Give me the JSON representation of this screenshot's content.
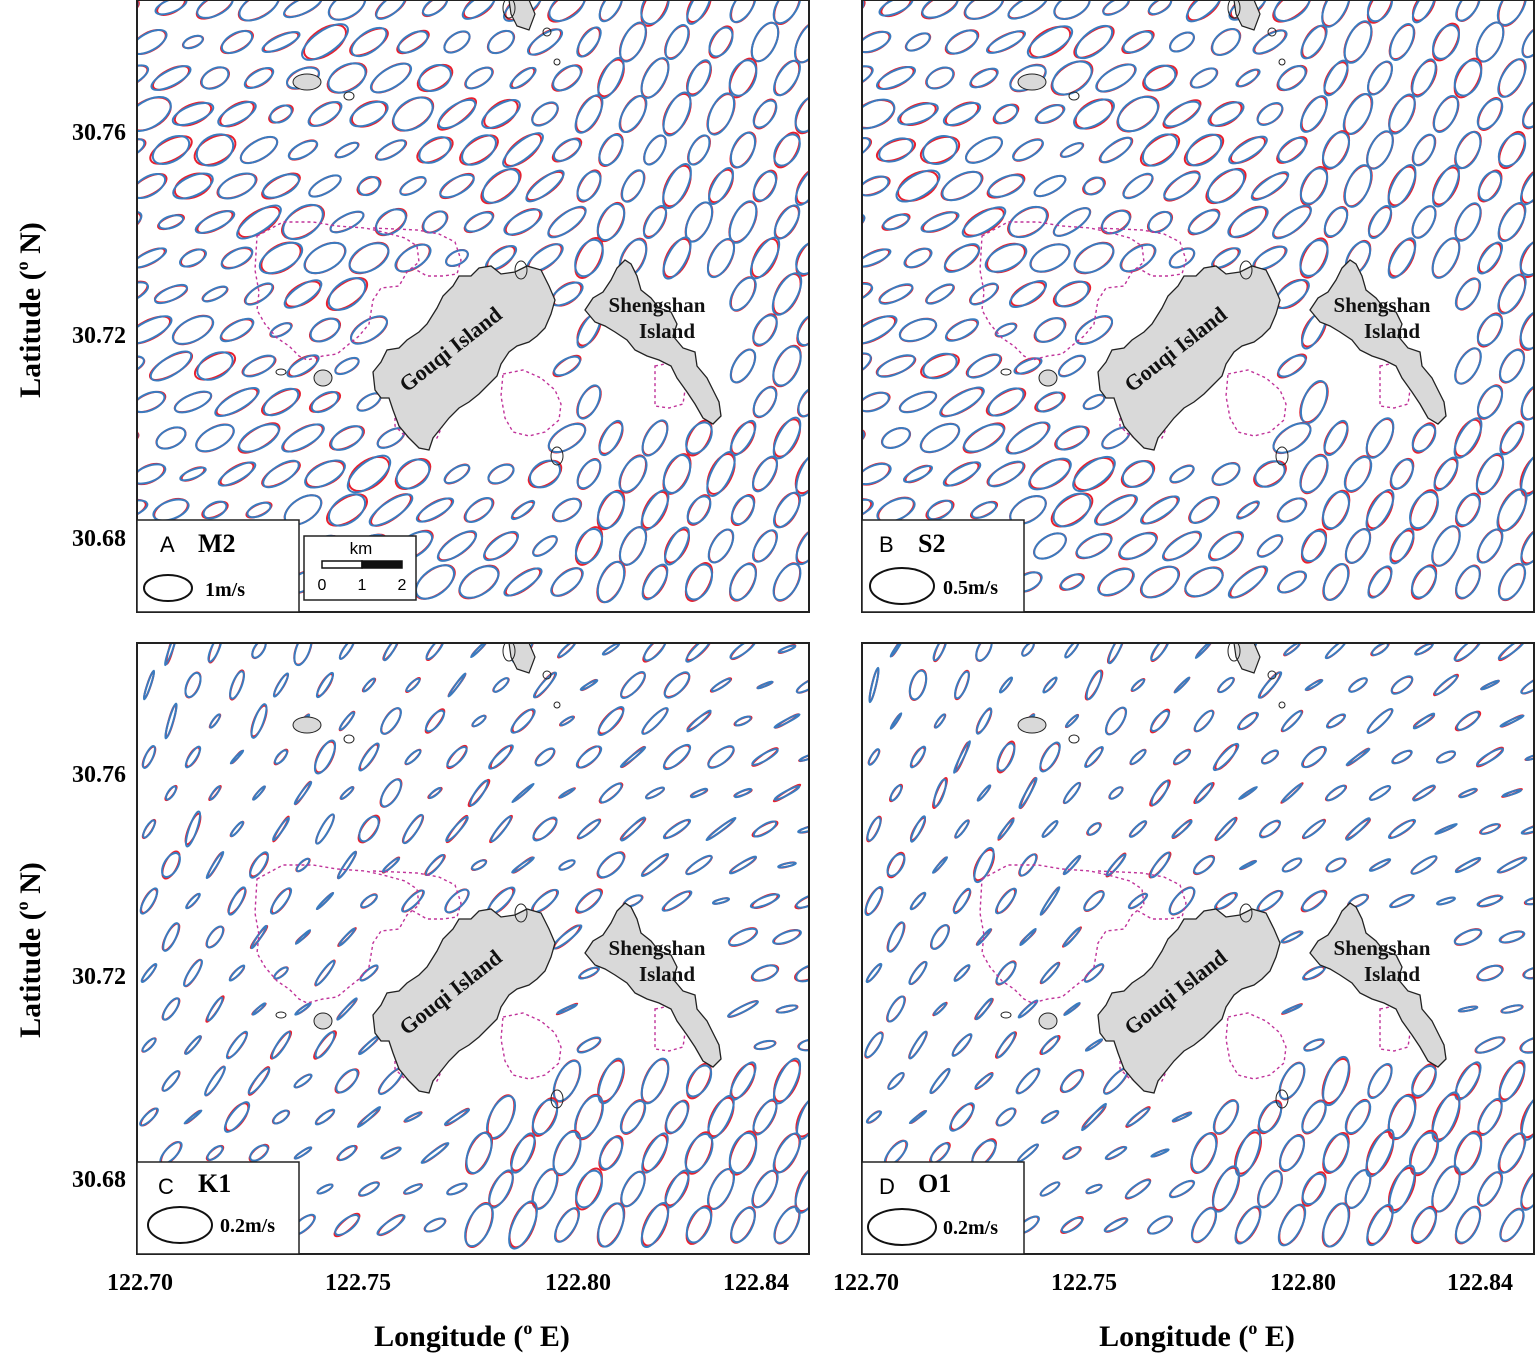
{
  "figure": {
    "x_axis_label": "Longitude (° E)",
    "x_axis_label_parts": {
      "pre": "Longitude (",
      "sup": "o",
      "post": " E)"
    },
    "y_axis_label_parts": {
      "pre": "Latitude (",
      "sup": "o",
      "post": " N)"
    },
    "x_ticks": [
      "122.70",
      "122.75",
      "122.80",
      "122.84"
    ],
    "y_ticks": [
      "30.76",
      "30.72",
      "30.68"
    ],
    "colors": {
      "observed": "#e8202e",
      "modeled": "#3a7bbf",
      "island_fill": "#d9d9d9",
      "outline": "#222222",
      "boundary": "#c0339a"
    }
  },
  "islands": {
    "gouqi": "Gouqi Island",
    "shengshan_line1": "Shengshan",
    "shengshan_line2": "Island"
  },
  "panels": [
    {
      "letter": "A",
      "constituent": "M2",
      "scale_label": "1m/s"
    },
    {
      "letter": "B",
      "constituent": "S2",
      "scale_label": "0.5m/s"
    },
    {
      "letter": "C",
      "constituent": "K1",
      "scale_label": "0.2m/s"
    },
    {
      "letter": "D",
      "constituent": "O1",
      "scale_label": "0.2m/s"
    }
  ],
  "scalebar": {
    "unit": "km",
    "ticks": [
      "0",
      "1",
      "2"
    ]
  }
}
